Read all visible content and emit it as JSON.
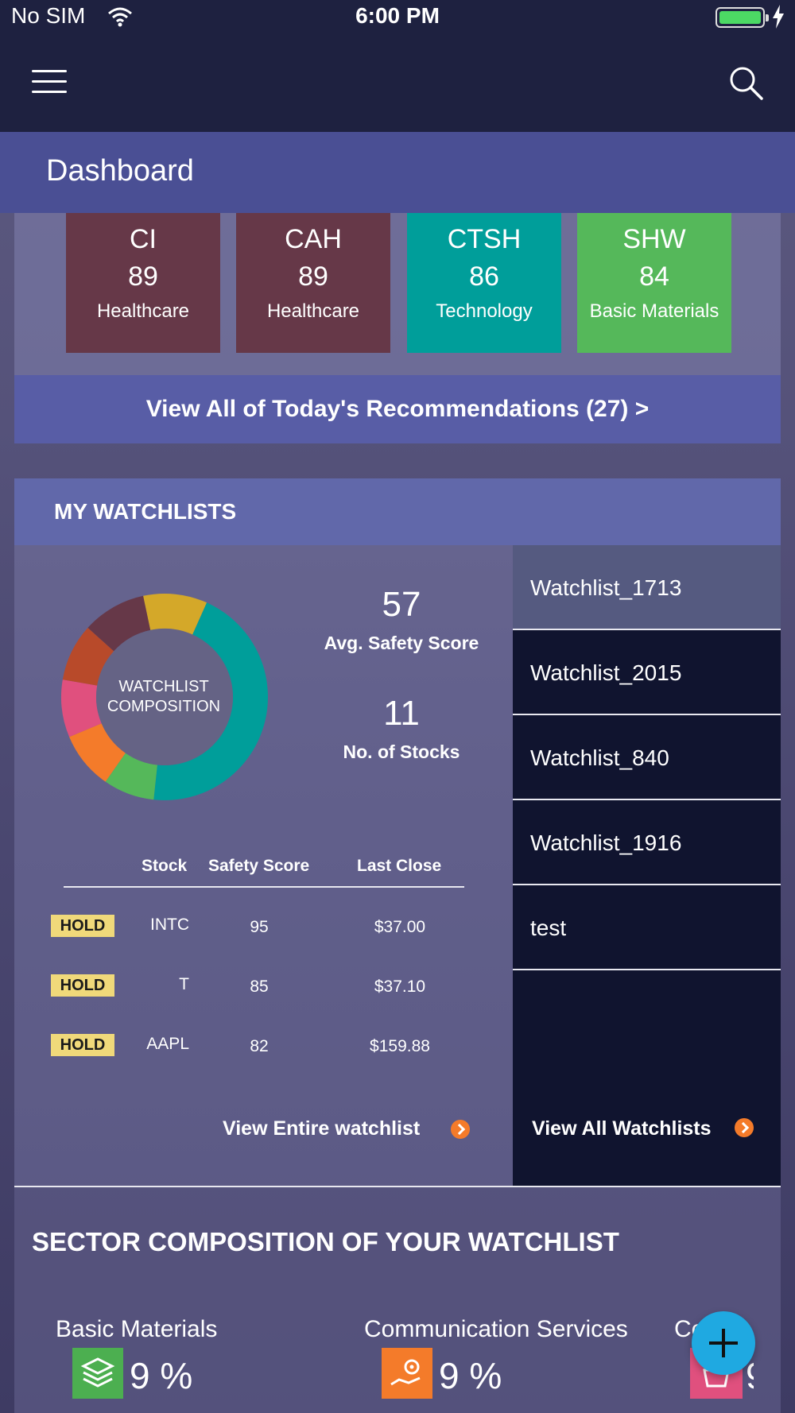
{
  "status_bar": {
    "carrier": "No SIM",
    "time": "6:00 PM"
  },
  "header": {
    "title": "Dashboard"
  },
  "recommendations": {
    "cards": [
      {
        "symbol": "CI",
        "score": "89",
        "sector": "Healthcare",
        "color": "#663848"
      },
      {
        "symbol": "CAH",
        "score": "89",
        "sector": "Healthcare",
        "color": "#663848"
      },
      {
        "symbol": "CTSH",
        "score": "86",
        "sector": "Technology",
        "color": "#009e9a"
      },
      {
        "symbol": "SHW",
        "score": "84",
        "sector": "Basic Materials",
        "color": "#55b85a"
      }
    ],
    "view_all_label": "View All of Today's Recommendations (27) >"
  },
  "watchlists": {
    "section_title": "MY WATCHLISTS",
    "composition_label_line1": "WATCHLIST",
    "composition_label_line2": "COMPOSITION",
    "avg_safety_score": "57",
    "avg_safety_label": "Avg. Safety Score",
    "num_stocks": "11",
    "num_stocks_label": "No. of Stocks",
    "table": {
      "headers": [
        "Stock",
        "Safety Score",
        "Last Close"
      ],
      "rows": [
        {
          "rating": "HOLD",
          "stock": "INTC",
          "safety": "95",
          "close": "$37.00"
        },
        {
          "rating": "HOLD",
          "stock": "T",
          "safety": "85",
          "close": "$37.10"
        },
        {
          "rating": "HOLD",
          "stock": "AAPL",
          "safety": "82",
          "close": "$159.88"
        }
      ]
    },
    "view_entire_label": "View Entire watchlist",
    "list": [
      "Watchlist_1713",
      "Watchlist_2015",
      "Watchlist_840",
      "Watchlist_1916",
      "test"
    ],
    "view_all_label": "View All Watchlists"
  },
  "sector_composition": {
    "title": "SECTOR COMPOSITION OF YOUR WATCHLIST",
    "items": [
      {
        "name": "Basic Materials",
        "percent": "9 %",
        "icon": "layers-icon",
        "color": "#4caf50"
      },
      {
        "name": "Communication Services",
        "percent": "9 %",
        "icon": "gear-hand-icon",
        "color": "#f47b2a"
      },
      {
        "name": "Co",
        "percent": "9",
        "icon": "basket-icon",
        "color": "#e0507e"
      }
    ]
  },
  "colors": {
    "accent_teal": "#009e9a",
    "hold_badge": "#f0d97a",
    "link_arrow": "#f47b2a",
    "fab": "#1fa9e1"
  }
}
